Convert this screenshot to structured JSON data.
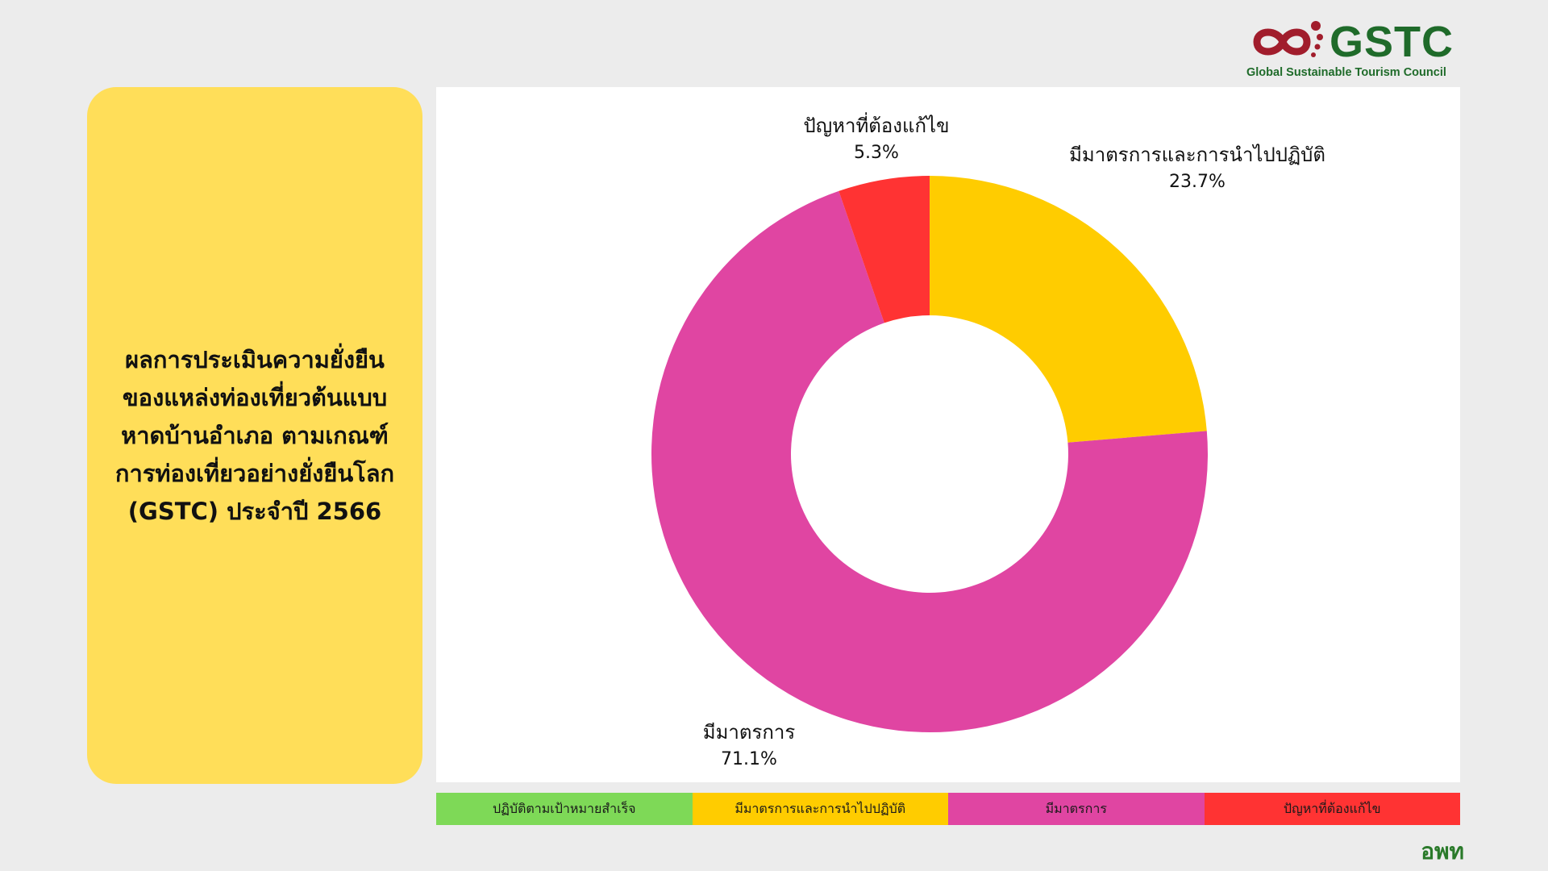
{
  "logo": {
    "name": "GSTC",
    "subtitle": "Global Sustainable Tourism Council",
    "color": "#1f6b2a",
    "mark_color": "#a11d2c"
  },
  "title_panel": {
    "lines": [
      "ผลการประเมินความยั่งยืน",
      "ของแหล่งท่องเที่ยวต้นแบบ",
      "หาดบ้านอำเภอ ตามเกณฑ์",
      "การท่องเที่ยวอย่างยั่งยืนโลก",
      "(GSTC) ประจำปี 2566"
    ],
    "background": "#ffde59"
  },
  "chart_data": {
    "type": "pie",
    "donut": true,
    "start": "top",
    "direction": "clockwise",
    "slices": [
      {
        "label": "มีมาตรการและการนำไปปฏิบัติ",
        "value": 23.7,
        "display": "23.7%",
        "color": "#ffcc00"
      },
      {
        "label": "มีมาตรการ",
        "value": 71.1,
        "display": "71.1%",
        "color": "#e045a2"
      },
      {
        "label": "ปัญหาที่ต้องแก้ไข",
        "value": 5.3,
        "display": "5.3%",
        "color": "#ff3333"
      }
    ]
  },
  "legend": [
    {
      "label": "ปฏิบัติตามเป้าหมายสำเร็จ",
      "color": "#7ed957"
    },
    {
      "label": "มีมาตรการและการนำไปปฏิบัติ",
      "color": "#ffcc00"
    },
    {
      "label": "มีมาตรการ",
      "color": "#e045a2"
    },
    {
      "label": "ปัญหาที่ต้องแก้ไข",
      "color": "#ff3333"
    }
  ],
  "footer": {
    "logo_text": "อพท",
    "color": "#2a7a2a"
  }
}
